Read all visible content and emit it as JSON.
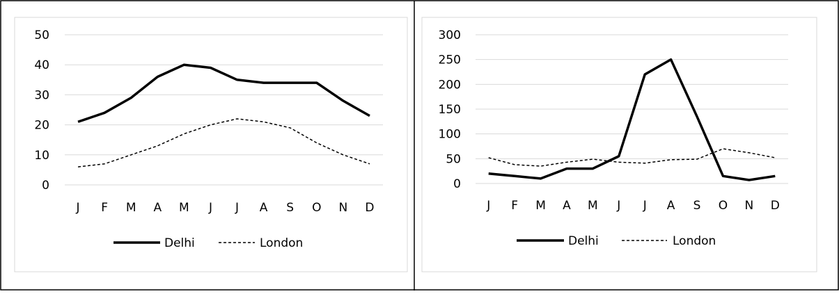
{
  "chart_data": [
    {
      "type": "line",
      "categories": [
        "J",
        "F",
        "M",
        "A",
        "M",
        "J",
        "J",
        "A",
        "S",
        "O",
        "N",
        "D"
      ],
      "ylim": [
        0,
        50
      ],
      "yticks": [
        0,
        10,
        20,
        30,
        40,
        50
      ],
      "grid": true,
      "legend_position": "bottom",
      "series": [
        {
          "name": "Delhi",
          "values": [
            21,
            24,
            29,
            36,
            40,
            39,
            35,
            34,
            34,
            34,
            28,
            23
          ],
          "style": "solid",
          "color": "#000000"
        },
        {
          "name": "London",
          "values": [
            6,
            7,
            10,
            13,
            17,
            20,
            22,
            21,
            19,
            14,
            10,
            7
          ],
          "style": "dashed",
          "color": "#000000"
        }
      ]
    },
    {
      "type": "line",
      "categories": [
        "J",
        "F",
        "M",
        "A",
        "M",
        "J",
        "J",
        "A",
        "S",
        "O",
        "N",
        "D"
      ],
      "ylim": [
        0,
        300
      ],
      "yticks": [
        0,
        50,
        100,
        150,
        200,
        250,
        300
      ],
      "grid": true,
      "legend_position": "bottom",
      "series": [
        {
          "name": "Delhi",
          "values": [
            20,
            15,
            10,
            30,
            30,
            55,
            220,
            250,
            135,
            15,
            7,
            15
          ],
          "style": "solid",
          "color": "#000000"
        },
        {
          "name": "London",
          "values": [
            52,
            38,
            35,
            43,
            49,
            43,
            41,
            48,
            49,
            70,
            62,
            52
          ],
          "style": "dashed",
          "color": "#000000"
        }
      ]
    }
  ],
  "colors": {
    "gridline": "#d9d9d9",
    "axis_text": "#595959",
    "border": "#000000",
    "chart_border": "#d9d9d9"
  }
}
